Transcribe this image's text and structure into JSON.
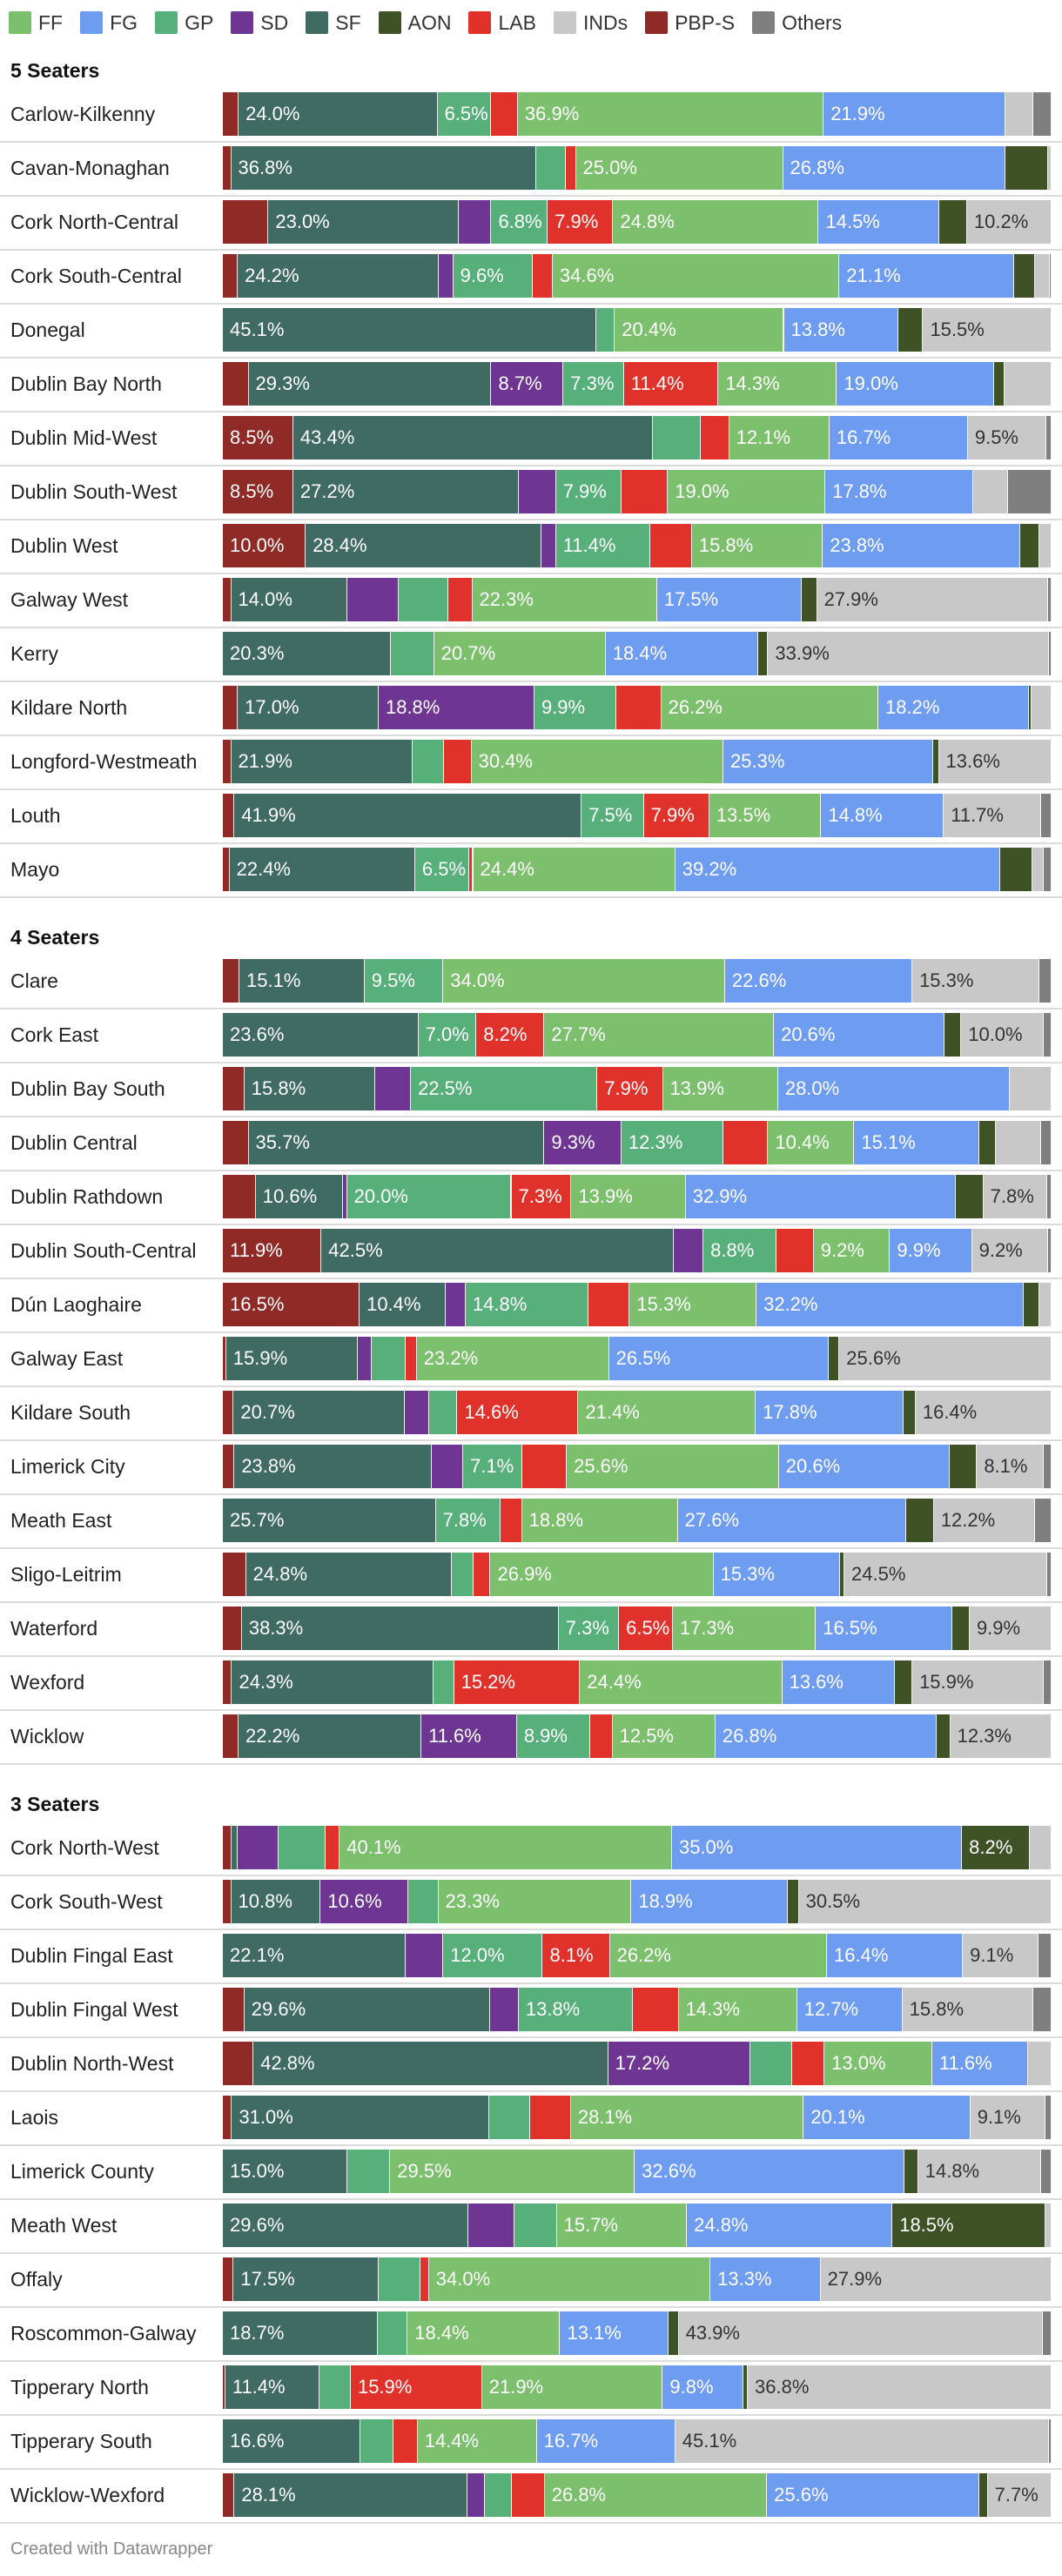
{
  "footer": "Created with Datawrapper",
  "chart_data": {
    "type": "stacked-bar-100",
    "parties": [
      {
        "key": "FF",
        "name": "FF",
        "color": "#7cbf6c",
        "text": "#ffffff"
      },
      {
        "key": "FG",
        "name": "FG",
        "color": "#6e9cf0",
        "text": "#ffffff"
      },
      {
        "key": "GP",
        "name": "GP",
        "color": "#57b07a",
        "text": "#ffffff"
      },
      {
        "key": "SD",
        "name": "SD",
        "color": "#6e3593",
        "text": "#ffffff"
      },
      {
        "key": "SF",
        "name": "SF",
        "color": "#3f6b63",
        "text": "#ffffff"
      },
      {
        "key": "AON",
        "name": "AON",
        "color": "#3f5226",
        "text": "#ffffff"
      },
      {
        "key": "LAB",
        "name": "LAB",
        "color": "#e0312b",
        "text": "#ffffff"
      },
      {
        "key": "INDs",
        "name": "INDs",
        "color": "#c8c8c8",
        "text": "#333333"
      },
      {
        "key": "PBP",
        "name": "PBP-S",
        "color": "#8f2a27",
        "text": "#ffffff"
      },
      {
        "key": "OTH",
        "name": "Others",
        "color": "#7f7f7f",
        "text": "#ffffff"
      }
    ],
    "bar_order": [
      "PBP",
      "SF",
      "SD",
      "GP",
      "LAB",
      "FF",
      "FG",
      "AON",
      "INDs",
      "OTH"
    ],
    "groups": [
      {
        "title": "5 Seaters",
        "rows": [
          {
            "name": "Carlow-Kilkenny",
            "values": {
              "PBP": 1.9,
              "SF": 24.0,
              "SD": 0,
              "GP": 6.5,
              "LAB": 3.2,
              "FF": 36.9,
              "FG": 21.9,
              "AON": 0,
              "INDs": 3.4,
              "OTH": 2.2
            }
          },
          {
            "name": "Cavan-Monaghan",
            "values": {
              "PBP": 1.0,
              "SF": 36.8,
              "SD": 0,
              "GP": 3.6,
              "LAB": 1.2,
              "FF": 25.0,
              "FG": 26.8,
              "AON": 5.2,
              "INDs": 0.4,
              "OTH": 0
            }
          },
          {
            "name": "Cork North-Central",
            "values": {
              "PBP": 5.5,
              "SF": 23.0,
              "SD": 3.9,
              "GP": 6.8,
              "LAB": 7.9,
              "FF": 24.8,
              "FG": 14.5,
              "AON": 3.4,
              "INDs": 10.2,
              "OTH": 0
            }
          },
          {
            "name": "Cork South-Central",
            "values": {
              "PBP": 1.8,
              "SF": 24.2,
              "SD": 1.8,
              "GP": 9.6,
              "LAB": 2.4,
              "FF": 34.6,
              "FG": 21.1,
              "AON": 2.5,
              "INDs": 1.8,
              "OTH": 0.2
            }
          },
          {
            "name": "Donegal",
            "values": {
              "PBP": 0,
              "SF": 45.1,
              "SD": 0,
              "GP": 2.2,
              "LAB": 0,
              "FF": 20.4,
              "FG": 13.8,
              "AON": 3.0,
              "INDs": 15.5,
              "OTH": 0
            }
          },
          {
            "name": "Dublin Bay North",
            "values": {
              "PBP": 3.1,
              "SF": 29.3,
              "SD": 8.7,
              "GP": 7.3,
              "LAB": 11.4,
              "FF": 14.3,
              "FG": 19.0,
              "AON": 1.2,
              "INDs": 5.7,
              "OTH": 0
            }
          },
          {
            "name": "Dublin Mid-West",
            "values": {
              "PBP": 8.5,
              "SF": 43.4,
              "SD": 0,
              "GP": 5.8,
              "LAB": 3.4,
              "FF": 12.1,
              "FG": 16.7,
              "AON": 0,
              "INDs": 9.5,
              "OTH": 0.6
            }
          },
          {
            "name": "Dublin South-West",
            "values": {
              "PBP": 8.5,
              "SF": 27.2,
              "SD": 4.5,
              "GP": 7.9,
              "LAB": 5.6,
              "FF": 19.0,
              "FG": 17.8,
              "AON": 0,
              "INDs": 4.2,
              "OTH": 5.3
            }
          },
          {
            "name": "Dublin West",
            "values": {
              "PBP": 10.0,
              "SF": 28.4,
              "SD": 1.8,
              "GP": 11.4,
              "LAB": 5.0,
              "FF": 15.8,
              "FG": 23.8,
              "AON": 2.3,
              "INDs": 1.5,
              "OTH": 0
            }
          },
          {
            "name": "Galway West",
            "values": {
              "PBP": 1.0,
              "SF": 14.0,
              "SD": 6.2,
              "GP": 6.0,
              "LAB": 2.9,
              "FF": 22.3,
              "FG": 17.5,
              "AON": 1.8,
              "INDs": 27.9,
              "OTH": 0.4
            }
          },
          {
            "name": "Kerry",
            "values": {
              "PBP": 0,
              "SF": 20.3,
              "SD": 0,
              "GP": 5.2,
              "LAB": 0,
              "FF": 20.7,
              "FG": 18.4,
              "AON": 1.2,
              "INDs": 33.9,
              "OTH": 0.3
            }
          },
          {
            "name": "Kildare North",
            "values": {
              "PBP": 1.8,
              "SF": 17.0,
              "SD": 18.8,
              "GP": 9.9,
              "LAB": 5.4,
              "FF": 26.2,
              "FG": 18.2,
              "AON": 0.3,
              "INDs": 2.4,
              "OTH": 0
            }
          },
          {
            "name": "Longford-Westmeath",
            "values": {
              "PBP": 1.0,
              "SF": 21.9,
              "SD": 0,
              "GP": 3.8,
              "LAB": 3.3,
              "FF": 30.4,
              "FG": 25.3,
              "AON": 0.7,
              "INDs": 13.6,
              "OTH": 0
            }
          },
          {
            "name": "Louth",
            "values": {
              "PBP": 1.4,
              "SF": 41.9,
              "SD": 0,
              "GP": 7.5,
              "LAB": 7.9,
              "FF": 13.5,
              "FG": 14.8,
              "AON": 0,
              "INDs": 11.7,
              "OTH": 1.3
            }
          },
          {
            "name": "Mayo",
            "values": {
              "PBP": 0.8,
              "SF": 22.4,
              "SD": 0,
              "GP": 6.5,
              "LAB": 0.5,
              "FF": 24.4,
              "FG": 39.2,
              "AON": 3.9,
              "INDs": 1.4,
              "OTH": 0.9
            }
          }
        ]
      },
      {
        "title": "4 Seaters",
        "rows": [
          {
            "name": "Clare",
            "values": {
              "PBP": 2.0,
              "SF": 15.1,
              "SD": 0,
              "GP": 9.5,
              "LAB": 0,
              "FF": 34.0,
              "FG": 22.6,
              "AON": 0,
              "INDs": 15.3,
              "OTH": 1.5
            }
          },
          {
            "name": "Cork East",
            "values": {
              "PBP": 0,
              "SF": 23.6,
              "SD": 0,
              "GP": 7.0,
              "LAB": 8.2,
              "FF": 27.7,
              "FG": 20.6,
              "AON": 2.0,
              "INDs": 10.0,
              "OTH": 0.9
            }
          },
          {
            "name": "Dublin Bay South",
            "values": {
              "PBP": 2.6,
              "SF": 15.8,
              "SD": 4.3,
              "GP": 22.5,
              "LAB": 7.9,
              "FF": 13.9,
              "FG": 28.0,
              "AON": 0,
              "INDs": 5.0,
              "OTH": 0
            }
          },
          {
            "name": "Dublin Central",
            "values": {
              "PBP": 3.1,
              "SF": 35.7,
              "SD": 9.3,
              "GP": 12.3,
              "LAB": 5.4,
              "FF": 10.4,
              "FG": 15.1,
              "AON": 2.0,
              "INDs": 5.4,
              "OTH": 1.3
            }
          },
          {
            "name": "Dublin Rathdown",
            "values": {
              "PBP": 4.0,
              "SF": 10.6,
              "SD": 0.5,
              "GP": 20.0,
              "LAB": 7.3,
              "FF": 13.9,
              "FG": 32.9,
              "AON": 3.3,
              "INDs": 7.8,
              "OTH": 0.5
            }
          },
          {
            "name": "Dublin South-Central",
            "values": {
              "PBP": 11.9,
              "SF": 42.5,
              "SD": 3.6,
              "GP": 8.8,
              "LAB": 4.5,
              "FF": 9.2,
              "FG": 9.9,
              "AON": 0,
              "INDs": 9.2,
              "OTH": 0.4
            }
          },
          {
            "name": "Dún Laoghaire",
            "values": {
              "PBP": 16.5,
              "SF": 10.4,
              "SD": 2.4,
              "GP": 14.8,
              "LAB": 5.0,
              "FF": 15.3,
              "FG": 32.2,
              "AON": 1.9,
              "INDs": 1.5,
              "OTH": 0
            }
          },
          {
            "name": "Galway East",
            "values": {
              "PBP": 0.4,
              "SF": 15.9,
              "SD": 1.7,
              "GP": 4.1,
              "LAB": 1.3,
              "FF": 23.2,
              "FG": 26.5,
              "AON": 1.3,
              "INDs": 25.6,
              "OTH": 0
            }
          },
          {
            "name": "Kildare South",
            "values": {
              "PBP": 1.3,
              "SF": 20.7,
              "SD": 2.9,
              "GP": 3.4,
              "LAB": 14.6,
              "FF": 21.4,
              "FG": 17.8,
              "AON": 1.5,
              "INDs": 16.4,
              "OTH": 0
            }
          },
          {
            "name": "Limerick City",
            "values": {
              "PBP": 1.4,
              "SF": 23.8,
              "SD": 3.8,
              "GP": 7.1,
              "LAB": 5.4,
              "FF": 25.6,
              "FG": 20.6,
              "AON": 3.3,
              "INDs": 8.1,
              "OTH": 0.9
            }
          },
          {
            "name": "Meath East",
            "values": {
              "PBP": 0,
              "SF": 25.7,
              "SD": 0,
              "GP": 7.8,
              "LAB": 2.6,
              "FF": 18.8,
              "FG": 27.6,
              "AON": 3.3,
              "INDs": 12.2,
              "OTH": 2.0
            }
          },
          {
            "name": "Sligo-Leitrim",
            "values": {
              "PBP": 2.8,
              "SF": 24.8,
              "SD": 0,
              "GP": 2.6,
              "LAB": 2.1,
              "FF": 26.9,
              "FG": 15.3,
              "AON": 0.5,
              "INDs": 24.5,
              "OTH": 0.5
            }
          },
          {
            "name": "Waterford",
            "values": {
              "PBP": 2.3,
              "SF": 38.3,
              "SD": 0,
              "GP": 7.3,
              "LAB": 6.5,
              "FF": 17.3,
              "FG": 16.5,
              "AON": 2.1,
              "INDs": 9.9,
              "OTH": 0
            }
          },
          {
            "name": "Wexford",
            "values": {
              "PBP": 1.1,
              "SF": 24.3,
              "SD": 0,
              "GP": 2.5,
              "LAB": 15.2,
              "FF": 24.4,
              "FG": 13.6,
              "AON": 2.1,
              "INDs": 15.9,
              "OTH": 0.9
            }
          },
          {
            "name": "Wicklow",
            "values": {
              "PBP": 1.9,
              "SF": 22.2,
              "SD": 11.6,
              "GP": 8.9,
              "LAB": 2.7,
              "FF": 12.5,
              "FG": 26.8,
              "AON": 1.7,
              "INDs": 12.3,
              "OTH": 0
            }
          }
        ]
      },
      {
        "title": "3 Seaters",
        "rows": [
          {
            "name": "Cork North-West",
            "values": {
              "PBP": 1.1,
              "SF": 0.7,
              "SD": 4.9,
              "GP": 5.7,
              "LAB": 1.7,
              "FF": 40.1,
              "FG": 35.0,
              "AON": 8.2,
              "INDs": 2.6,
              "OTH": 0
            }
          },
          {
            "name": "Cork South-West",
            "values": {
              "PBP": 1.0,
              "SF": 10.8,
              "SD": 10.6,
              "GP": 3.6,
              "LAB": 0,
              "FF": 23.3,
              "FG": 18.9,
              "AON": 1.3,
              "INDs": 30.5,
              "OTH": 0
            }
          },
          {
            "name": "Dublin Fingal East",
            "values": {
              "PBP": 0,
              "SF": 22.1,
              "SD": 4.5,
              "GP": 12.0,
              "LAB": 8.1,
              "FF": 26.2,
              "FG": 16.4,
              "AON": 0,
              "INDs": 9.1,
              "OTH": 1.6
            }
          },
          {
            "name": "Dublin Fingal West",
            "values": {
              "PBP": 2.6,
              "SF": 29.6,
              "SD": 3.5,
              "GP": 13.8,
              "LAB": 5.5,
              "FF": 14.3,
              "FG": 12.7,
              "AON": 0,
              "INDs": 15.8,
              "OTH": 2.2
            }
          },
          {
            "name": "Dublin North-West",
            "values": {
              "PBP": 3.7,
              "SF": 42.8,
              "SD": 17.2,
              "GP": 5.0,
              "LAB": 3.9,
              "FF": 13.0,
              "FG": 11.6,
              "AON": 0,
              "INDs": 2.8,
              "OTH": 0
            }
          },
          {
            "name": "Laois",
            "values": {
              "PBP": 1.1,
              "SF": 31.0,
              "SD": 0,
              "GP": 5.0,
              "LAB": 4.9,
              "FF": 28.1,
              "FG": 20.1,
              "AON": 0,
              "INDs": 9.1,
              "OTH": 0.7
            }
          },
          {
            "name": "Limerick County",
            "values": {
              "PBP": 0,
              "SF": 15.0,
              "SD": 0,
              "GP": 5.2,
              "LAB": 0,
              "FF": 29.5,
              "FG": 32.6,
              "AON": 1.6,
              "INDs": 14.8,
              "OTH": 1.3
            }
          },
          {
            "name": "Meath West",
            "values": {
              "PBP": 0,
              "SF": 29.6,
              "SD": 5.6,
              "GP": 5.1,
              "LAB": 0,
              "FF": 15.7,
              "FG": 24.8,
              "AON": 18.5,
              "INDs": 0.7,
              "OTH": 0
            }
          },
          {
            "name": "Offaly",
            "values": {
              "PBP": 1.3,
              "SF": 17.5,
              "SD": 0,
              "GP": 5.1,
              "LAB": 1.0,
              "FF": 34.0,
              "FG": 13.3,
              "AON": 0,
              "INDs": 27.9,
              "OTH": 0
            }
          },
          {
            "name": "Roscommon-Galway",
            "values": {
              "PBP": 0,
              "SF": 18.7,
              "SD": 0,
              "GP": 3.6,
              "LAB": 0,
              "FF": 18.4,
              "FG": 13.1,
              "AON": 1.2,
              "INDs": 43.9,
              "OTH": 1.1
            }
          },
          {
            "name": "Tipperary North",
            "values": {
              "PBP": 0.3,
              "SF": 11.4,
              "SD": 0,
              "GP": 3.8,
              "LAB": 15.9,
              "FF": 21.9,
              "FG": 9.8,
              "AON": 0.5,
              "INDs": 36.8,
              "OTH": 0
            }
          },
          {
            "name": "Tipperary South",
            "values": {
              "PBP": 0,
              "SF": 16.6,
              "SD": 0,
              "GP": 4.0,
              "LAB": 2.9,
              "FF": 14.4,
              "FG": 16.7,
              "AON": 0,
              "INDs": 45.1,
              "OTH": 0.3
            }
          },
          {
            "name": "Wicklow-Wexford",
            "values": {
              "PBP": 1.4,
              "SF": 28.1,
              "SD": 2.1,
              "GP": 3.2,
              "LAB": 4.0,
              "FF": 26.8,
              "FG": 25.6,
              "AON": 1.0,
              "INDs": 7.7,
              "OTH": 0
            }
          }
        ]
      }
    ]
  }
}
